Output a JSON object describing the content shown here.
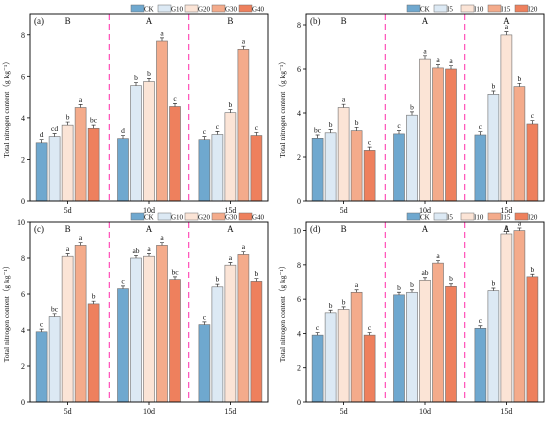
{
  "figure": {
    "colors": {
      "CK": "#6fa8cf",
      "L1": "#dce9f4",
      "L2": "#fbe4d6",
      "L3": "#f4ab8b",
      "L4": "#ee805d",
      "divider": "#ff4fb8",
      "bar_edge": "#6d6d6d"
    }
  },
  "chart_data": [
    {
      "type": "bar",
      "panel_label": "(a)",
      "ylabel": "Total nitrogen content（g kg⁻¹）",
      "ylim": [
        0,
        9
      ],
      "yticks": [
        0,
        2,
        4,
        6,
        8
      ],
      "categories": [
        "5d",
        "10d",
        "15d"
      ],
      "group_letters": [
        "B",
        "A",
        "B"
      ],
      "legend_position": "top-right",
      "series": [
        {
          "name": "CK",
          "color_key": "CK",
          "values": [
            2.8,
            3.0,
            2.95
          ],
          "letters": [
            "d",
            "d",
            "c"
          ]
        },
        {
          "name": "G10",
          "color_key": "L1",
          "values": [
            3.1,
            5.55,
            3.2
          ],
          "letters": [
            "cd",
            "b",
            "c"
          ]
        },
        {
          "name": "G20",
          "color_key": "L2",
          "values": [
            3.65,
            5.75,
            4.25
          ],
          "letters": [
            "b",
            "b",
            "b"
          ]
        },
        {
          "name": "G30",
          "color_key": "L3",
          "values": [
            4.5,
            7.7,
            7.3
          ],
          "letters": [
            "a",
            "a",
            "a"
          ]
        },
        {
          "name": "G40",
          "color_key": "L4",
          "values": [
            3.5,
            4.55,
            3.15
          ],
          "letters": [
            "bc",
            "c",
            "c"
          ]
        }
      ]
    },
    {
      "type": "bar",
      "panel_label": "(b)",
      "ylabel": "Total nitrogen content（g kg⁻¹）",
      "ylim": [
        0,
        8.5
      ],
      "yticks": [
        0,
        2,
        4,
        6,
        8
      ],
      "categories": [
        "5d",
        "10d",
        "15d"
      ],
      "group_letters": [
        "B",
        "A",
        "A"
      ],
      "legend_position": "top-right",
      "series": [
        {
          "name": "CK",
          "color_key": "CK",
          "values": [
            2.85,
            3.05,
            3.0
          ],
          "letters": [
            "bc",
            "c",
            "c"
          ]
        },
        {
          "name": "I5",
          "color_key": "L1",
          "values": [
            3.1,
            3.9,
            4.85
          ],
          "letters": [
            "b",
            "b",
            "b"
          ]
        },
        {
          "name": "I10",
          "color_key": "L2",
          "values": [
            4.25,
            6.45,
            7.55
          ],
          "letters": [
            "a",
            "a",
            "a"
          ]
        },
        {
          "name": "I15",
          "color_key": "L3",
          "values": [
            3.2,
            6.05,
            5.2
          ],
          "letters": [
            "b",
            "a",
            "b"
          ]
        },
        {
          "name": "I20",
          "color_key": "L4",
          "values": [
            2.3,
            6.0,
            3.5
          ],
          "letters": [
            "c",
            "a",
            "c"
          ]
        }
      ]
    },
    {
      "type": "bar",
      "panel_label": "(c)",
      "ylabel": "Total nitrogen content（g kg⁻¹）",
      "ylim": [
        0,
        10
      ],
      "yticks": [
        0,
        2,
        4,
        6,
        8,
        10
      ],
      "categories": [
        "5d",
        "10d",
        "15d"
      ],
      "group_letters": [
        "B",
        "A",
        "A"
      ],
      "legend_position": "top-right",
      "series": [
        {
          "name": "CK",
          "color_key": "CK",
          "values": [
            3.9,
            6.3,
            4.3
          ],
          "letters": [
            "c",
            "c",
            "c"
          ]
        },
        {
          "name": "G10",
          "color_key": "L1",
          "values": [
            4.75,
            8.0,
            6.4
          ],
          "letters": [
            "bc",
            "ab",
            "b"
          ]
        },
        {
          "name": "G20",
          "color_key": "L2",
          "values": [
            8.1,
            8.1,
            7.6
          ],
          "letters": [
            "a",
            "a",
            "a"
          ]
        },
        {
          "name": "G30",
          "color_key": "L3",
          "values": [
            8.7,
            8.7,
            8.2
          ],
          "letters": [
            "a",
            "a",
            "a"
          ]
        },
        {
          "name": "G40",
          "color_key": "L4",
          "values": [
            5.45,
            6.8,
            6.7
          ],
          "letters": [
            "b",
            "bc",
            "b"
          ]
        }
      ]
    },
    {
      "type": "bar",
      "panel_label": "(d)",
      "ylabel": "Total nitrogen content（g kg⁻¹）",
      "ylim": [
        0,
        10.5
      ],
      "yticks": [
        0,
        2,
        4,
        6,
        8,
        10
      ],
      "categories": [
        "5d",
        "10d",
        "15d"
      ],
      "group_letters": [
        "B",
        "A",
        "A"
      ],
      "legend_position": "top-right",
      "series": [
        {
          "name": "CK",
          "color_key": "CK",
          "values": [
            3.9,
            6.25,
            4.3
          ],
          "letters": [
            "c",
            "b",
            "c"
          ]
        },
        {
          "name": "I5",
          "color_key": "L1",
          "values": [
            5.2,
            6.4,
            6.5
          ],
          "letters": [
            "b",
            "b",
            "b"
          ]
        },
        {
          "name": "I10",
          "color_key": "L2",
          "values": [
            5.4,
            7.1,
            9.8
          ],
          "letters": [
            "b",
            "ab",
            "a"
          ]
        },
        {
          "name": "I15",
          "color_key": "L3",
          "values": [
            6.4,
            8.1,
            10.0
          ],
          "letters": [
            "a",
            "a",
            "a"
          ]
        },
        {
          "name": "I20",
          "color_key": "L4",
          "values": [
            3.9,
            6.75,
            7.3
          ],
          "letters": [
            "c",
            "b",
            "b"
          ]
        }
      ]
    }
  ]
}
